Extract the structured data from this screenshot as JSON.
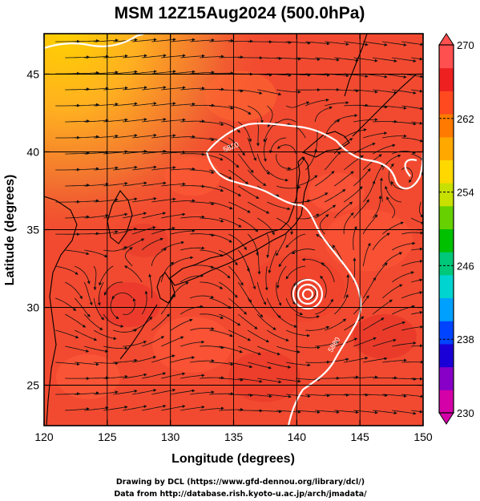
{
  "title": "MSM 12Z15Aug2024 (500.0hPa)",
  "x_axis": {
    "label": "Longitude (degrees)",
    "range": [
      120,
      150
    ],
    "ticks": [
      "120",
      "125",
      "130",
      "135",
      "140",
      "145",
      "150"
    ]
  },
  "y_axis": {
    "label": "Latitude  (degrees)",
    "range": [
      22.4,
      47.6
    ],
    "ticks": [
      "25",
      "30",
      "35",
      "40",
      "45"
    ]
  },
  "colorbar": {
    "range": [
      230,
      270
    ],
    "tick_labels": [
      "230",
      "238",
      "246",
      "254",
      "262",
      "270"
    ],
    "colors": [
      "#d400a8",
      "#8800c8",
      "#1a00d6",
      "#0044ff",
      "#00a0ff",
      "#00d4d0",
      "#00c87a",
      "#00c000",
      "#66d000",
      "#c8e000",
      "#ffd800",
      "#ffa800",
      "#ff7a00",
      "#ff4a20",
      "#ee2020",
      "#ff5050"
    ],
    "arrows": "both ends"
  },
  "contour_labels": [
    "5820",
    "5880",
    "5880"
  ],
  "map_features": {
    "typhoon_center_lonlat": [
      141.2,
      31.4
    ],
    "background_color": "#f24a30"
  },
  "credits": {
    "line1": "Drawing by DCL (https://www.gfd-dennou.org/library/dcl/)",
    "line2": "Data from http://database.rish.kyoto-u.ac.jp/arch/jmadata/"
  }
}
